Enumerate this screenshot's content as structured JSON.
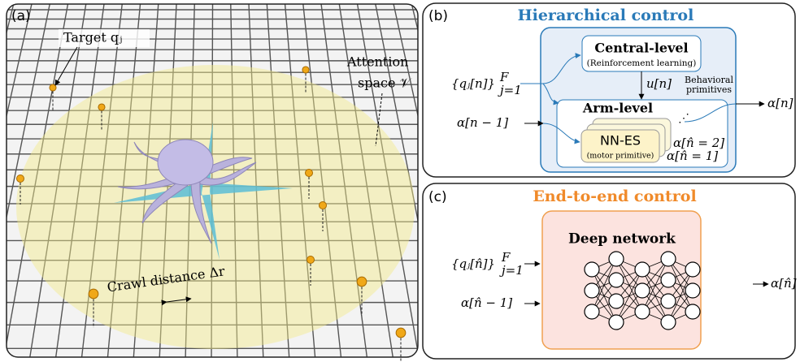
{
  "panel_a": {
    "label": "(a)",
    "target_label": "Target qⱼ",
    "attention_line1": "Attention",
    "attention_line2": "space 𝒱",
    "crawl_label": "Crawl distance Δr"
  },
  "panel_b": {
    "label": "(b)",
    "title": "Hierarchical control",
    "central_title": "Central-level",
    "central_subtitle": "(Reinforcement learning)",
    "u_label": "u[n]",
    "behavioral_line1": "Behavioral",
    "behavioral_line2": "primitives",
    "arm_title": "Arm-level",
    "nnes_title": "NN-ES",
    "nnes_subtitle": "(motor primitive)",
    "alpha2": "α[n̂ = 2]",
    "alpha1": "α[n̂ = 1]",
    "input_q": "{qⱼ[n]}",
    "input_q_sup": "F",
    "input_q_sub": "j=1",
    "input_alpha": "α[n − 1]",
    "output": "α[n]"
  },
  "panel_c": {
    "label": "(c)",
    "title": "End-to-end control",
    "network_title": "Deep network",
    "input_q": "{qⱼ[n̂]}",
    "input_q_sup": "F",
    "input_q_sub": "j=1",
    "input_alpha": "α[n̂ − 1]",
    "output": "α[n̂]"
  }
}
